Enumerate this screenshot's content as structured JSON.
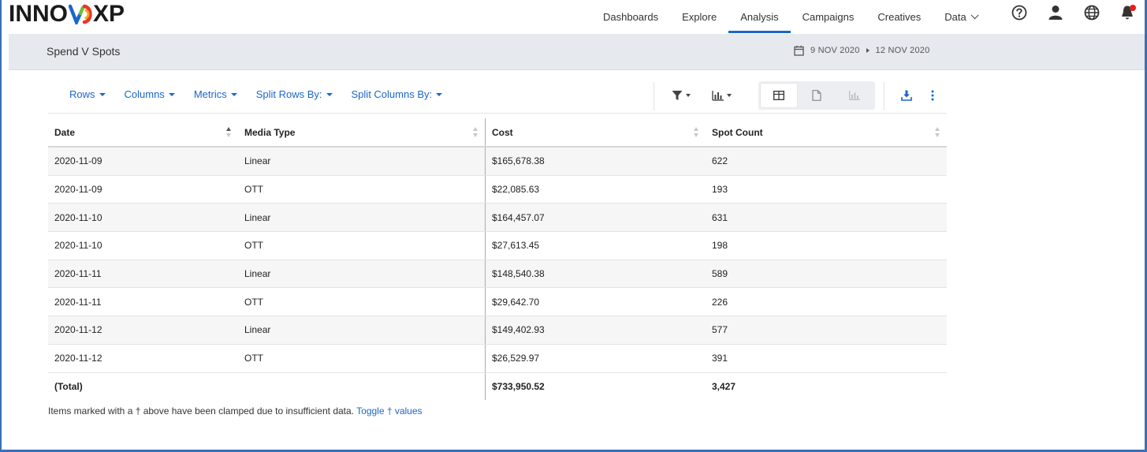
{
  "app": {
    "logo_text_left": "INNO",
    "logo_text_right": "XP"
  },
  "nav": {
    "items": [
      {
        "label": "Dashboards",
        "active": false
      },
      {
        "label": "Explore",
        "active": false
      },
      {
        "label": "Analysis",
        "active": true
      },
      {
        "label": "Campaigns",
        "active": false
      },
      {
        "label": "Creatives",
        "active": false
      },
      {
        "label": "Data",
        "active": false,
        "dropdown": true
      }
    ],
    "icons": [
      "help-icon",
      "user-icon",
      "globe-icon",
      "notifications-bell-icon"
    ]
  },
  "report": {
    "title": "Spend V Spots",
    "date_start": "9 NOV 2020",
    "date_end": "12 NOV 2020"
  },
  "toolbar": {
    "menus": [
      "Rows",
      "Columns",
      "Metrics",
      "Split Rows By:",
      "Split Columns By:"
    ]
  },
  "table": {
    "headers": [
      "Date",
      "Media Type",
      "Cost",
      "Spot Count"
    ],
    "rows": [
      [
        "2020-11-09",
        "Linear",
        "$165,678.38",
        "622"
      ],
      [
        "2020-11-09",
        "OTT",
        "$22,085.63",
        "193"
      ],
      [
        "2020-11-10",
        "Linear",
        "$164,457.07",
        "631"
      ],
      [
        "2020-11-10",
        "OTT",
        "$27,613.45",
        "198"
      ],
      [
        "2020-11-11",
        "Linear",
        "$148,540.38",
        "589"
      ],
      [
        "2020-11-11",
        "OTT",
        "$29,642.70",
        "226"
      ],
      [
        "2020-11-12",
        "Linear",
        "$149,402.93",
        "577"
      ],
      [
        "2020-11-12",
        "OTT",
        "$26,529.97",
        "391"
      ]
    ],
    "total": {
      "label": "(Total)",
      "cost": "$733,950.52",
      "spot_count": "3,427"
    }
  },
  "footnote": {
    "text": "Items marked with a † above have been clamped due to insufficient data.",
    "link": "Toggle † values"
  },
  "colors": {
    "accent": "#1b66c9",
    "notification": "#e0201b",
    "frame": "#3b6fb6"
  }
}
